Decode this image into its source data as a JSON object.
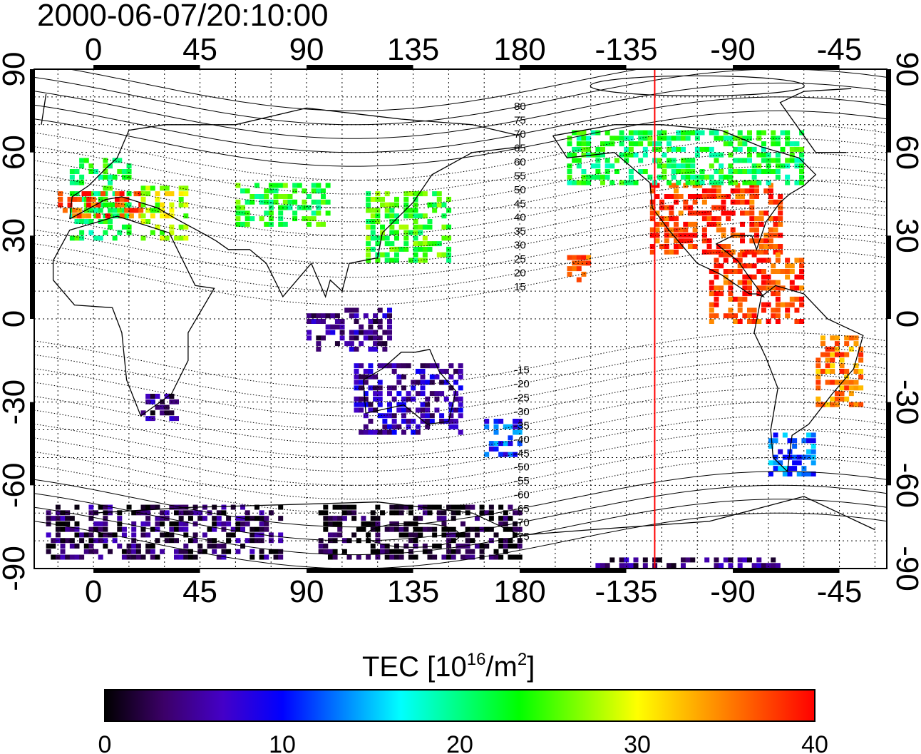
{
  "timestamp": "2000-06-07/20:10:00",
  "map": {
    "lon_tick_labels": [
      "0",
      "45",
      "90",
      "135",
      "180",
      "-135",
      "-90",
      "-45"
    ],
    "lat_tick_labels": [
      "90",
      "60",
      "30",
      "0",
      "-30",
      "-60",
      "-90"
    ],
    "lon_range": [
      -25,
      335
    ],
    "lat_range": [
      -90,
      90
    ],
    "contour_labels": [
      "80",
      "75",
      "70",
      "65",
      "60",
      "55",
      "50",
      "45",
      "40",
      "35",
      "30",
      "25",
      "20",
      "15",
      "-15",
      "-20",
      "-25",
      "-30",
      "-35",
      "-40",
      "-45",
      "-50",
      "-55",
      "-60",
      "-65",
      "-70",
      "-75"
    ],
    "terminator_lon": -123,
    "grid": "dotted"
  },
  "colorbar": {
    "title": "TEC  [10",
    "title_sup": "16",
    "title_mid": "/m",
    "title_sup2": "2",
    "title_end": "]",
    "tick_labels": [
      "0",
      "10",
      "20",
      "30",
      "40"
    ],
    "range": [
      0,
      40
    ],
    "colors": [
      "#000000",
      "#3c0068",
      "#4400c8",
      "#0000ff",
      "#0080ff",
      "#00ffff",
      "#00ff80",
      "#00ff00",
      "#80ff00",
      "#ffff00",
      "#ffaa00",
      "#ff5500",
      "#ff0000"
    ]
  },
  "chart_data": {
    "type": "heatmap",
    "title": "2000-06-07/20:10:00",
    "xlabel": "",
    "ylabel": "",
    "xlim": [
      -25,
      335
    ],
    "ylim": [
      -90,
      90
    ],
    "value_label": "TEC [10^16/m^2]",
    "value_range": [
      0,
      40
    ],
    "regions": [
      {
        "name": "",
        "lon": [
          -10,
          15
        ],
        "lat": [
          30,
          60
        ],
        "tec": 22
      },
      {
        "name": "",
        "lon": [
          -15,
          20
        ],
        "lat": [
          38,
          47
        ],
        "tec": 37
      },
      {
        "name": "",
        "lon": [
          20,
          40
        ],
        "lat": [
          30,
          50
        ],
        "tec": 28
      },
      {
        "name": "",
        "lon": [
          60,
          100
        ],
        "lat": [
          35,
          50
        ],
        "tec": 23
      },
      {
        "name": "",
        "lon": [
          115,
          150
        ],
        "lat": [
          22,
          48
        ],
        "tec": 24
      },
      {
        "name": "",
        "lon": [
          90,
          125
        ],
        "lat": [
          -10,
          5
        ],
        "tec": 5
      },
      {
        "name": "",
        "lon": [
          110,
          155
        ],
        "lat": [
          -40,
          -15
        ],
        "tec": 6
      },
      {
        "name": "",
        "lon": [
          165,
          180
        ],
        "lat": [
          -48,
          -35
        ],
        "tec": 11
      },
      {
        "name": "",
        "lon": [
          20,
          35
        ],
        "lat": [
          -35,
          -25
        ],
        "tec": 4
      },
      {
        "name": "",
        "lon": [
          -125,
          -70
        ],
        "lat": [
          25,
          50
        ],
        "tec": 38
      },
      {
        "name": "",
        "lon": [
          -160,
          -60
        ],
        "lat": [
          50,
          70
        ],
        "tec": 22
      },
      {
        "name": "",
        "lon": [
          -100,
          -60
        ],
        "lat": [
          0,
          25
        ],
        "tec": 38
      },
      {
        "name": "",
        "lon": [
          -55,
          -35
        ],
        "lat": [
          -30,
          -5
        ],
        "tec": 35
      },
      {
        "name": "",
        "lon": [
          -75,
          -55
        ],
        "lat": [
          -55,
          -40
        ],
        "tec": 12
      },
      {
        "name": "",
        "lon": [
          -160,
          -150
        ],
        "lat": [
          15,
          25
        ],
        "tec": 38
      },
      {
        "name": "",
        "lon": [
          -20,
          80
        ],
        "lat": [
          -85,
          -65
        ],
        "tec": 3
      },
      {
        "name": "",
        "lon": [
          95,
          180
        ],
        "lat": [
          -85,
          -65
        ],
        "tec": 1
      },
      {
        "name": "",
        "lon": [
          -150,
          -70
        ],
        "lat": [
          -90,
          -85
        ],
        "tec": 4
      }
    ]
  }
}
